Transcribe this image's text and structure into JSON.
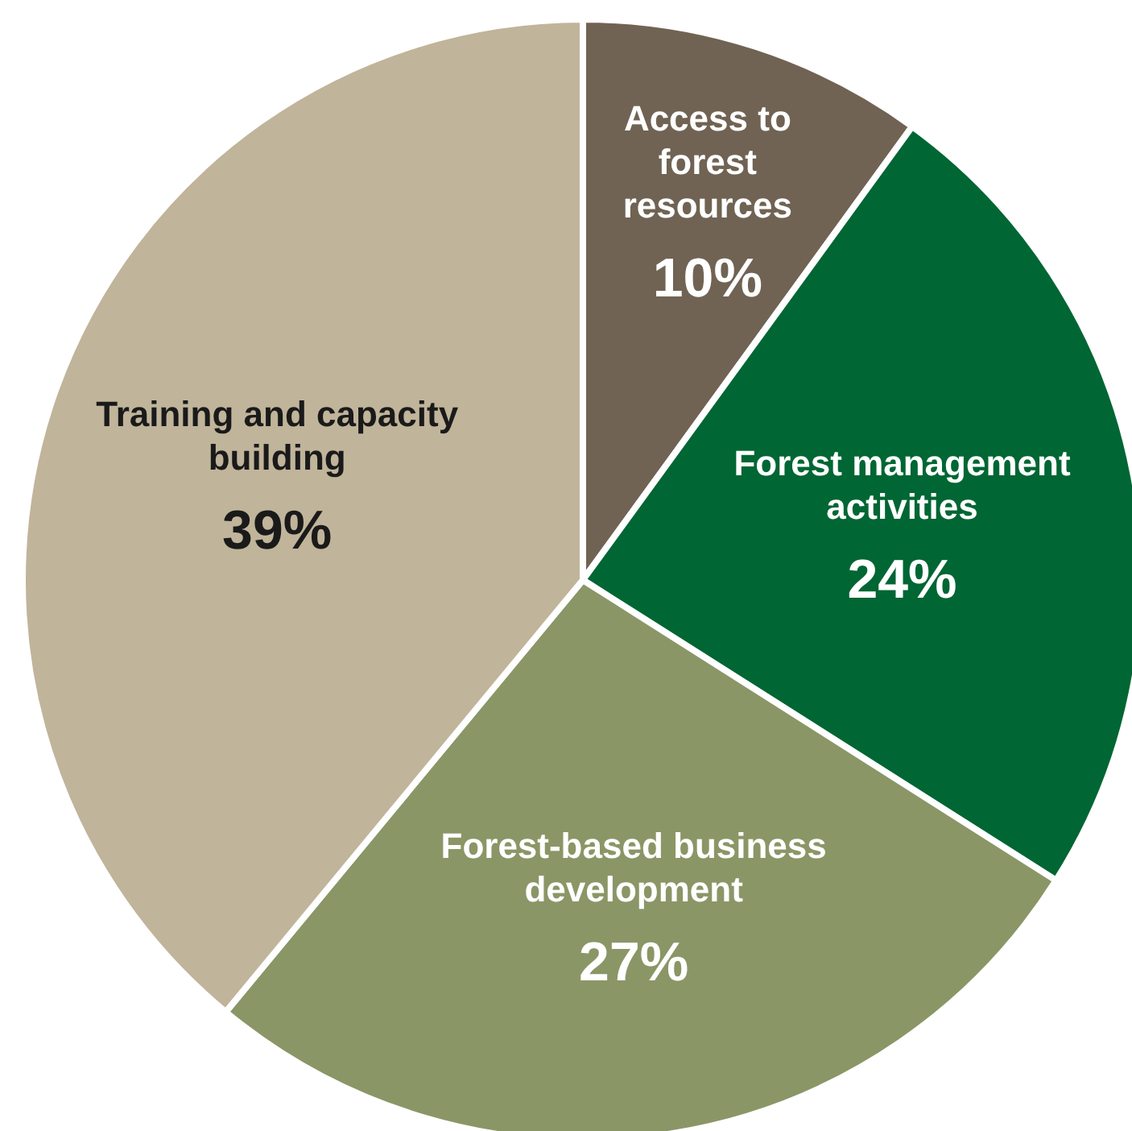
{
  "chart_data": {
    "type": "pie",
    "categories": [
      "Access to forest resources",
      "Forest management activities",
      "Forest-based business development",
      "Training and capacity building"
    ],
    "values": [
      10,
      24,
      27,
      39
    ],
    "colors": [
      "#706353",
      "#006633",
      "#8a9666",
      "#c0b49a"
    ],
    "value_labels": [
      "10%",
      "24%",
      "27%",
      "39%"
    ],
    "legend": false
  }
}
